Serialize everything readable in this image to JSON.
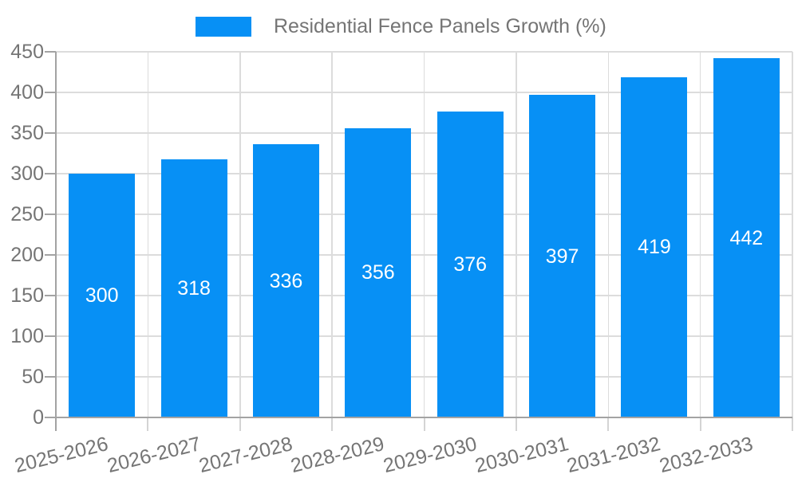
{
  "chart_data": {
    "type": "bar",
    "series_label": "Residential Fence Panels Growth (%)",
    "categories": [
      "2025-2026",
      "2026-2027",
      "2027-2028",
      "2028-2029",
      "2029-2030",
      "2030-2031",
      "2031-2032",
      "2032-2033"
    ],
    "values": [
      300,
      318,
      336,
      356,
      376,
      397,
      419,
      442
    ],
    "bar_value_labels": [
      "300",
      "318",
      "336",
      "356",
      "376",
      "397",
      "419",
      "442"
    ],
    "ylim": [
      0,
      450
    ],
    "ytick_step": 50,
    "yticks": [
      0,
      50,
      100,
      150,
      200,
      250,
      300,
      350,
      400,
      450
    ],
    "grid": true,
    "legend_position": "top-center",
    "value_label_position": "inside-middle"
  },
  "colors": {
    "bar": "#0790f5",
    "axis": "#a3a3a3",
    "grid": "#dcdcdc",
    "tick_minor": "#d4d4d4",
    "text": "#757575",
    "value_label": "#ffffff",
    "background": "#ffffff"
  }
}
